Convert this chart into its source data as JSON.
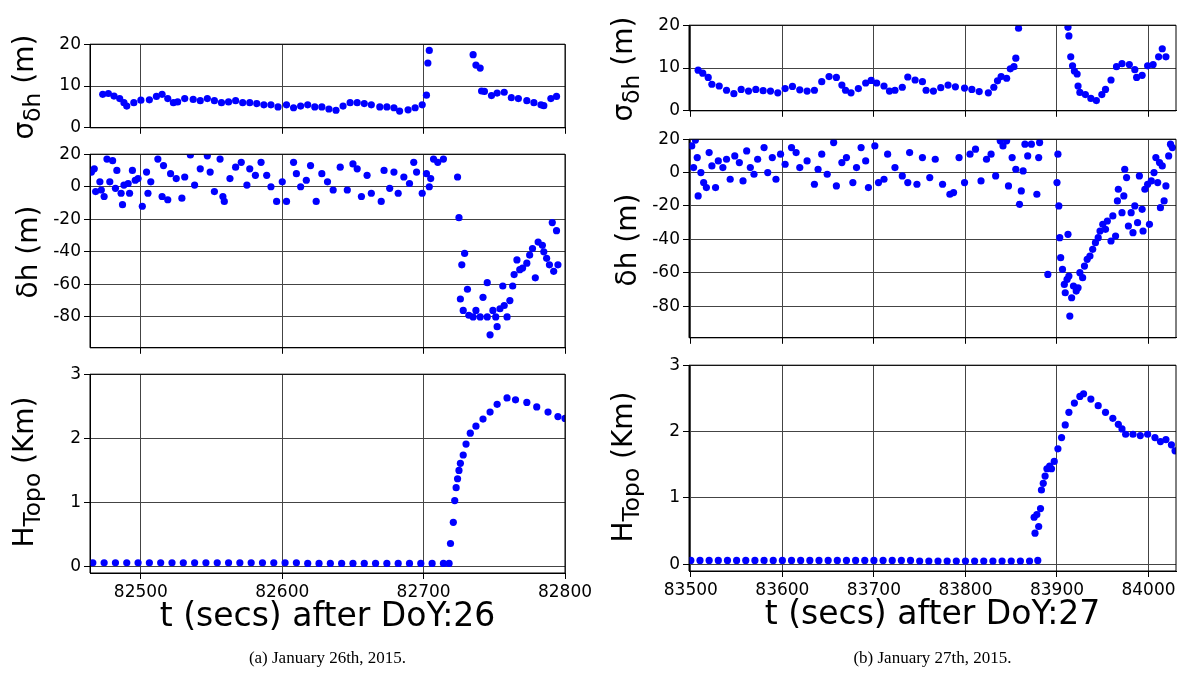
{
  "chart_data": [
    {
      "type": "scatter",
      "ylabel": "σ$_{δh}$ (m)",
      "xlim": [
        82464,
        82800
      ],
      "xticks": [
        82500,
        82600,
        82700,
        82800
      ],
      "ylim": [
        0,
        20
      ],
      "yticks": [
        0,
        10,
        20
      ],
      "grid": true,
      "marker": "circle",
      "tick_labels": "y",
      "series": [
        {
          "color": "#0000ff",
          "x": [
            82473,
            82477,
            82481,
            82485,
            82488,
            82490,
            82495,
            82500,
            82506,
            82511,
            82515,
            82519,
            82523,
            82526,
            82531,
            82537,
            82542,
            82547,
            82552,
            82557,
            82562,
            82567,
            82572,
            82577,
            82582,
            82587,
            82592,
            82597,
            82603,
            82608,
            82613,
            82618,
            82623,
            82628,
            82633,
            82638,
            82643,
            82648,
            82653,
            82658,
            82663,
            82669,
            82674,
            82679,
            82683,
            82689,
            82694,
            82699,
            82702,
            82703,
            82704,
            82735,
            82737,
            82740,
            82741,
            82743,
            82748,
            82752,
            82757,
            82762,
            82767,
            82773,
            82778,
            82783,
            82785,
            82790,
            82794
          ],
          "values": [
            8,
            8.2,
            7.6,
            7,
            6,
            5.2,
            6,
            6.6,
            6.7,
            7.5,
            8,
            7,
            6,
            6.2,
            7,
            6.8,
            6.5,
            7,
            6.5,
            6,
            6.2,
            6.5,
            6,
            6,
            5.8,
            5.5,
            5.5,
            5,
            5.5,
            4.8,
            5.2,
            5.5,
            5,
            5,
            4.5,
            4.2,
            5.2,
            6,
            6,
            5.8,
            5.5,
            5,
            5,
            4.8,
            4,
            4.3,
            4.8,
            5.5,
            7.8,
            15.5,
            18.5,
            17.5,
            15,
            14.3,
            8.8,
            8.7,
            7.7,
            8.3,
            8.5,
            7.2,
            7,
            6.5,
            6,
            5.5,
            5.3,
            7,
            7.5
          ]
        }
      ]
    },
    {
      "type": "scatter",
      "ylabel": "δh (m)",
      "xlim": [
        82464,
        82800
      ],
      "xticks": [
        82500,
        82600,
        82700,
        82800
      ],
      "ylim": [
        -99,
        20
      ],
      "yticks": [
        -80,
        -60,
        -40,
        -20,
        0,
        20
      ],
      "grid": true,
      "marker": "circle",
      "tick_labels": "y",
      "series": [
        {
          "color": "#0000ff",
          "x": [
            82465,
            82467,
            82468,
            82471,
            82472,
            82474,
            82476,
            82478,
            82480,
            82482,
            82483,
            82486,
            82487,
            82488,
            82491,
            82492,
            82494,
            82496,
            82498,
            82501,
            82504,
            82505,
            82507,
            82512,
            82515,
            82516,
            82519,
            82521,
            82525,
            82529,
            82531,
            82535,
            82538,
            82542,
            82547,
            82549,
            82552,
            82556,
            82558,
            82559,
            82563,
            82567,
            82571,
            82575,
            82577,
            82581,
            82585,
            82589,
            82592,
            82596,
            82600,
            82603,
            82608,
            82610,
            82613,
            82617,
            82620,
            82624,
            82628,
            82632,
            82636,
            82641,
            82646,
            82650,
            82653,
            82656,
            82660,
            82663,
            82670,
            82672,
            82676,
            82679,
            82682,
            82686,
            82690,
            82693,
            82695,
            82699,
            82702,
            82704,
            82705,
            82707,
            82710,
            82714,
            82724,
            82725,
            82726,
            82727,
            82728,
            82729,
            82731,
            82732,
            82735,
            82737,
            82740,
            82742,
            82745,
            82745,
            82747,
            82749,
            82751,
            82752,
            82754,
            82756,
            82757,
            82759,
            82761,
            82763,
            82764,
            82766,
            82768,
            82770,
            82773,
            82775,
            82777,
            82779,
            82781,
            82784,
            82785,
            82787,
            82789,
            82791,
            82792,
            82794,
            82795
          ],
          "values": [
            9,
            11,
            -3,
            3,
            -2,
            -6,
            17,
            3,
            16,
            -1,
            10,
            -4,
            -11,
            1,
            2,
            -4,
            10,
            4,
            5,
            -12,
            9,
            -4,
            3,
            17,
            -6,
            13,
            -8,
            8,
            5,
            -7,
            6,
            19.5,
            1,
            11,
            19,
            9,
            -3,
            17,
            -6,
            -9,
            5,
            12,
            15,
            1,
            11,
            7,
            15,
            7,
            0,
            -9,
            3,
            -9,
            15,
            8,
            0,
            4,
            13,
            -9,
            8,
            3,
            -2,
            12,
            -2,
            14,
            11,
            -6,
            7,
            -4,
            -9,
            10,
            -1,
            9,
            -4,
            6,
            2,
            15,
            9,
            -4,
            8,
            0,
            5,
            17,
            15,
            17,
            6,
            -19,
            -69,
            -48,
            -76,
            -41,
            -63,
            -79,
            -80,
            -76,
            -80,
            -68,
            -80,
            -59,
            -91,
            -76,
            -80,
            -86,
            -75,
            -61,
            -73,
            -80,
            -70,
            -61,
            -54,
            -45,
            -51,
            -50,
            -47,
            -42,
            -38,
            -56,
            -34,
            -36,
            -40,
            -44,
            -48,
            -22,
            -52,
            -27,
            -48
          ]
        }
      ]
    },
    {
      "type": "scatter",
      "ylabel": "H$_{Topo}$ (Km)",
      "xlabel": "t (secs) after DoY:26",
      "annotations": [
        "(a) January 26th, 2015."
      ],
      "xlim": [
        82464,
        82800
      ],
      "xticks": [
        82500,
        82600,
        82700,
        82800
      ],
      "ylim": [
        -0.1,
        3
      ],
      "yticks": [
        0,
        1,
        2,
        3
      ],
      "grid": true,
      "marker": "circle",
      "series": [
        {
          "color": "#0000ff",
          "x": [
            82466,
            82474,
            82482,
            82490,
            82498,
            82506,
            82514,
            82522,
            82530,
            82538,
            82546,
            82554,
            82562,
            82570,
            82578,
            82586,
            82594,
            82602,
            82610,
            82618,
            82626,
            82634,
            82642,
            82650,
            82658,
            82666,
            82674,
            82682,
            82690,
            82698,
            82706,
            82714,
            82718,
            82719,
            82721,
            82722,
            82723,
            82724,
            82725,
            82726,
            82728,
            82730,
            82733,
            82737,
            82742,
            82747,
            82752,
            82759,
            82765,
            82773,
            82780,
            82788,
            82795,
            82800
          ],
          "values": [
            0.06,
            0.06,
            0.06,
            0.06,
            0.06,
            0.06,
            0.06,
            0.06,
            0.06,
            0.06,
            0.06,
            0.06,
            0.06,
            0.06,
            0.06,
            0.06,
            0.06,
            0.06,
            0.06,
            0.05,
            0.05,
            0.05,
            0.05,
            0.05,
            0.05,
            0.05,
            0.05,
            0.05,
            0.05,
            0.05,
            0.05,
            0.05,
            0.05,
            0.36,
            0.69,
            1.03,
            1.23,
            1.37,
            1.5,
            1.61,
            1.74,
            1.91,
            2.08,
            2.19,
            2.3,
            2.41,
            2.53,
            2.63,
            2.6,
            2.56,
            2.49,
            2.41,
            2.34,
            2.31
          ]
        }
      ]
    },
    {
      "type": "scatter",
      "ylabel": "σ$_{δh}$ (m)",
      "xlim": [
        83498,
        84030
      ],
      "xticks": [
        83500,
        83600,
        83700,
        83800,
        83900,
        84000
      ],
      "ylim": [
        0,
        20
      ],
      "yticks": [
        0,
        10,
        20
      ],
      "grid": true,
      "marker": "circle",
      "tick_labels": "y",
      "series": [
        {
          "color": "#0000ff",
          "x": [
            83508,
            83513,
            83519,
            83523,
            83531,
            83539,
            83547,
            83555,
            83563,
            83571,
            83579,
            83587,
            83595,
            83603,
            83611,
            83619,
            83627,
            83635,
            83643,
            83651,
            83659,
            83665,
            83669,
            83675,
            83683,
            83691,
            83697,
            83703,
            83711,
            83717,
            83723,
            83731,
            83737,
            83745,
            83753,
            83757,
            83765,
            83773,
            83781,
            83789,
            83799,
            83807,
            83815,
            83825,
            83831,
            83835,
            83839,
            83845,
            83849,
            83853,
            83855,
            83858,
            83912,
            83913,
            83915,
            83917,
            83919,
            83922,
            83923,
            83925,
            83931,
            83937,
            83943,
            83949,
            83953,
            83959,
            83965,
            83971,
            83979,
            83985,
            83987,
            83993,
            83999,
            84005,
            84011,
            84015,
            84019
          ],
          "values": [
            9.5,
            8.8,
            7.8,
            6.2,
            5.8,
            4.8,
            4,
            5,
            4.6,
            5,
            4.7,
            4.6,
            4.2,
            5.2,
            5.7,
            4.9,
            4.6,
            4.8,
            6.8,
            8,
            7.8,
            6,
            4.8,
            4.2,
            5.2,
            6.5,
            7.1,
            6.5,
            5.8,
            4.6,
            4.8,
            5.5,
            7.9,
            7.2,
            6.8,
            4.8,
            4.6,
            5.4,
            6,
            5.6,
            5.3,
            5,
            4.5,
            4.2,
            5.5,
            7,
            8,
            7.6,
            9.8,
            10.3,
            12.3,
            19.3,
            19.5,
            17.5,
            12.6,
            10.5,
            9.3,
            8.6,
            5.8,
            4.3,
            3.8,
            2.9,
            2.4,
            3.8,
            5,
            7.2,
            10.3,
            11,
            10.8,
            9.6,
            7.8,
            8.3,
            10.5,
            10.8,
            12.6,
            14.5,
            12.6
          ]
        }
      ]
    },
    {
      "type": "scatter",
      "ylabel": "δh (m)",
      "xlim": [
        83498,
        84030
      ],
      "xticks": [
        83500,
        83600,
        83700,
        83800,
        83900,
        84000
      ],
      "ylim": [
        -99,
        20
      ],
      "yticks": [
        -80,
        -60,
        -40,
        -20,
        0,
        20
      ],
      "grid": true,
      "marker": "circle",
      "tick_labels": "y",
      "series": [
        {
          "color": "#0000ff",
          "x": [
            83501,
            83503,
            83505,
            83507,
            83508,
            83511,
            83514,
            83517,
            83520,
            83523,
            83527,
            83530,
            83535,
            83539,
            83543,
            83548,
            83553,
            83557,
            83561,
            83565,
            83569,
            83573,
            83580,
            83584,
            83589,
            83593,
            83598,
            83603,
            83610,
            83615,
            83619,
            83627,
            83635,
            83639,
            83643,
            83649,
            83656,
            83659,
            83665,
            83670,
            83677,
            83681,
            83686,
            83691,
            83694,
            83701,
            83705,
            83711,
            83715,
            83723,
            83731,
            83737,
            83739,
            83747,
            83753,
            83761,
            83767,
            83775,
            83783,
            83787,
            83793,
            83799,
            83805,
            83811,
            83817,
            83823,
            83828,
            83833,
            83838,
            83841,
            83845,
            83847,
            83851,
            83855,
            83859,
            83861,
            83863,
            83865,
            83868,
            83872,
            83878,
            83880,
            83881,
            83890,
            83900,
            83901,
            83902,
            83903,
            83904,
            83906,
            83908,
            83909,
            83911,
            83912,
            83913,
            83914,
            83916,
            83918,
            83921,
            83923,
            83925,
            83928,
            83930,
            83933,
            83936,
            83939,
            83942,
            83945,
            83947,
            83950,
            83953,
            83955,
            83959,
            83961,
            83964,
            83966,
            83967,
            83971,
            83973,
            83974,
            83976,
            83978,
            83981,
            83983,
            83985,
            83988,
            83990,
            83993,
            83994,
            83996,
            83999,
            84001,
            84003,
            84006,
            84008,
            84010,
            84012,
            84013,
            84015,
            84017,
            84019,
            84022,
            84024,
            84026
          ],
          "values": [
            16,
            3,
            19.5,
            9,
            -14,
            0,
            -6,
            -9,
            12,
            4,
            -9,
            7,
            3,
            8,
            -4,
            10,
            6,
            -5,
            13,
            3,
            -1,
            8,
            15,
            0,
            9,
            -4,
            11,
            5,
            15,
            12,
            3,
            7,
            -7,
            2,
            11,
            -1,
            18,
            -8,
            6,
            9,
            -6,
            3,
            15,
            7,
            -9,
            16,
            -6,
            -4,
            11,
            3,
            -2,
            -6,
            12,
            -7,
            9,
            -3,
            8,
            -7,
            -13,
            -12,
            9,
            -6,
            11,
            14,
            -5,
            8,
            11,
            -2,
            19,
            16,
            19,
            -8,
            9,
            2,
            -19,
            -11,
            1,
            17,
            10,
            17,
            -13,
            9,
            18,
            -61,
            -6,
            11,
            -20,
            -39,
            -51,
            -58,
            -67,
            -72,
            -64,
            -37,
            -62,
            -86,
            -75,
            -68,
            -71,
            -69,
            -60,
            -63,
            -56,
            -52,
            -50,
            -46,
            -42,
            -39,
            -35,
            -31,
            -34,
            -29,
            -41,
            -26,
            -38,
            -17,
            -10,
            -24,
            -14,
            2,
            -3,
            -32,
            -24,
            -36,
            -20,
            -30,
            -2,
            -22,
            -35,
            -10,
            -7,
            -31,
            -5,
            0,
            9,
            -6,
            6,
            -21,
            4,
            -17,
            -8,
            10,
            17,
            15
          ]
        }
      ]
    },
    {
      "type": "scatter",
      "ylabel": "H$_{Topo}$ (Km)",
      "xlabel": "t (secs) after DoY:27",
      "annotations": [
        "(b) January 27th, 2015."
      ],
      "xlim": [
        83498,
        84030
      ],
      "xticks": [
        83500,
        83600,
        83700,
        83800,
        83900,
        84000
      ],
      "ylim": [
        -0.1,
        3
      ],
      "yticks": [
        0,
        1,
        2,
        3
      ],
      "grid": true,
      "marker": "circle",
      "series": [
        {
          "color": "#0000ff",
          "x": [
            83500,
            83510,
            83520,
            83530,
            83540,
            83550,
            83560,
            83570,
            83580,
            83590,
            83600,
            83610,
            83620,
            83630,
            83640,
            83650,
            83660,
            83670,
            83680,
            83690,
            83700,
            83710,
            83720,
            83730,
            83740,
            83750,
            83760,
            83770,
            83780,
            83790,
            83800,
            83810,
            83820,
            83830,
            83840,
            83850,
            83860,
            83870,
            83875,
            83876,
            83878,
            83879,
            83880,
            83882,
            83883,
            83885,
            83887,
            83889,
            83892,
            83894,
            83897,
            83901,
            83905,
            83909,
            83913,
            83919,
            83925,
            83929,
            83937,
            83945,
            83953,
            83961,
            83967,
            83971,
            83975,
            83983,
            83991,
            83999,
            84007,
            84013,
            84019,
            84025,
            84029
          ],
          "values": [
            0.06,
            0.06,
            0.06,
            0.06,
            0.06,
            0.06,
            0.06,
            0.06,
            0.06,
            0.06,
            0.06,
            0.06,
            0.06,
            0.06,
            0.06,
            0.06,
            0.06,
            0.06,
            0.06,
            0.06,
            0.06,
            0.06,
            0.06,
            0.06,
            0.06,
            0.05,
            0.05,
            0.05,
            0.05,
            0.05,
            0.05,
            0.05,
            0.05,
            0.05,
            0.05,
            0.05,
            0.05,
            0.05,
            0.71,
            0.47,
            0.75,
            0.06,
            0.57,
            0.84,
            1.12,
            1.22,
            1.33,
            1.44,
            1.48,
            1.44,
            1.55,
            1.74,
            1.91,
            2.1,
            2.29,
            2.43,
            2.53,
            2.57,
            2.49,
            2.39,
            2.29,
            2.2,
            2.11,
            2.04,
            1.96,
            1.96,
            1.94,
            1.96,
            1.91,
            1.85,
            1.88,
            1.8,
            1.71
          ]
        }
      ]
    }
  ]
}
